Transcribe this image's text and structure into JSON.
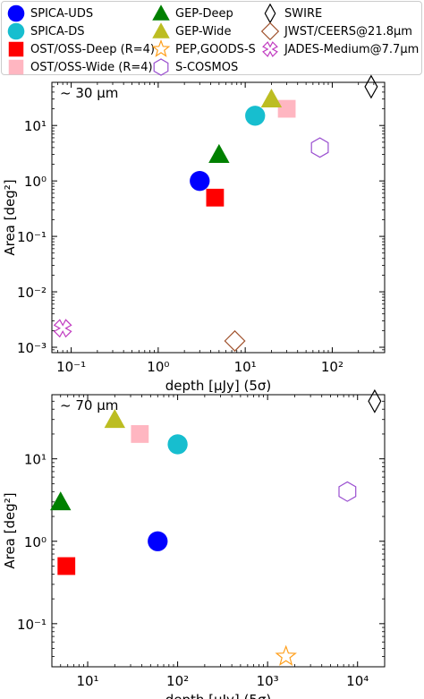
{
  "legend": [
    {
      "label": "SPICA-UDS",
      "marker": "circle",
      "color": "#0000ff",
      "filled": true
    },
    {
      "label": "SPICA-DS",
      "marker": "circle",
      "color": "#17becf",
      "filled": true
    },
    {
      "label": "OST/OSS-Deep (R=4)",
      "marker": "square",
      "color": "#ff0000",
      "filled": true
    },
    {
      "label": "OST/OSS-Wide (R=4)",
      "marker": "square",
      "color": "#ffb6c1",
      "filled": true
    },
    {
      "label": "GEP-Deep",
      "marker": "triangle",
      "color": "#008000",
      "filled": true
    },
    {
      "label": "GEP-Wide",
      "marker": "triangle",
      "color": "#bcbd22",
      "filled": true
    },
    {
      "label": "PEP,GOODS-S",
      "marker": "star",
      "color": "#ff9f1c",
      "filled": false
    },
    {
      "label": "S-COSMOS",
      "marker": "hexagon",
      "color": "#9a4fd0",
      "filled": false
    },
    {
      "label": "SWIRE",
      "marker": "thin_diamond",
      "color": "#000000",
      "filled": false
    },
    {
      "label": "JWST/CEERS@21.8μm",
      "marker": "diamond",
      "color": "#a0522d",
      "filled": false
    },
    {
      "label": "JADES-Medium@7.7μm",
      "marker": "x",
      "color": "#c13cc1",
      "filled": false
    }
  ],
  "chart_data": [
    {
      "type": "scatter",
      "annotation": "~ 30 μm",
      "xlabel": "depth [μJy] (5σ)",
      "ylabel": "Area [deg²]",
      "xscale": "log",
      "yscale": "log",
      "xlim": [
        0.06,
        400
      ],
      "ylim": [
        0.0008,
        60
      ],
      "xticks": [
        0.1,
        1,
        10,
        100
      ],
      "xticklabels": [
        "10⁻¹",
        "10⁰",
        "10¹",
        "10²"
      ],
      "yticks": [
        0.001,
        0.01,
        0.1,
        1,
        10
      ],
      "yticklabels": [
        "10⁻³",
        "10⁻²",
        "10⁻¹",
        "10⁰",
        "10¹"
      ],
      "series": [
        {
          "name": "SPICA-UDS",
          "x": [
            3
          ],
          "y": [
            1
          ]
        },
        {
          "name": "SPICA-DS",
          "x": [
            13
          ],
          "y": [
            15
          ]
        },
        {
          "name": "OST/OSS-Deep (R=4)",
          "x": [
            4.5
          ],
          "y": [
            0.5
          ]
        },
        {
          "name": "OST/OSS-Wide (R=4)",
          "x": [
            30
          ],
          "y": [
            20
          ]
        },
        {
          "name": "GEP-Deep",
          "x": [
            5
          ],
          "y": [
            3
          ]
        },
        {
          "name": "GEP-Wide",
          "x": [
            20
          ],
          "y": [
            30
          ]
        },
        {
          "name": "S-COSMOS",
          "x": [
            72
          ],
          "y": [
            4
          ]
        },
        {
          "name": "SWIRE",
          "x": [
            280
          ],
          "y": [
            50
          ]
        },
        {
          "name": "JWST/CEERS@21.8μm",
          "x": [
            7.6
          ],
          "y": [
            0.0013
          ]
        },
        {
          "name": "JADES-Medium@7.7μm",
          "x": [
            0.08
          ],
          "y": [
            0.0022
          ]
        }
      ]
    },
    {
      "type": "scatter",
      "annotation": "~ 70 μm",
      "xlabel": "depth [μJy] (5σ)",
      "ylabel": "Area [deg²]",
      "xscale": "log",
      "yscale": "log",
      "xlim": [
        4,
        20000
      ],
      "ylim": [
        0.03,
        60
      ],
      "xticks": [
        10,
        100,
        1000,
        10000
      ],
      "xticklabels": [
        "10¹",
        "10²",
        "10³",
        "10⁴"
      ],
      "yticks": [
        0.1,
        1,
        10
      ],
      "yticklabels": [
        "10⁻¹",
        "10⁰",
        "10¹"
      ],
      "series": [
        {
          "name": "SPICA-UDS",
          "x": [
            60
          ],
          "y": [
            1
          ]
        },
        {
          "name": "SPICA-DS",
          "x": [
            100
          ],
          "y": [
            15
          ]
        },
        {
          "name": "OST/OSS-Deep (R=4)",
          "x": [
            5.8
          ],
          "y": [
            0.5
          ]
        },
        {
          "name": "OST/OSS-Wide (R=4)",
          "x": [
            38
          ],
          "y": [
            20
          ]
        },
        {
          "name": "GEP-Deep",
          "x": [
            5
          ],
          "y": [
            3
          ]
        },
        {
          "name": "GEP-Wide",
          "x": [
            20
          ],
          "y": [
            30
          ]
        },
        {
          "name": "PEP,GOODS-S",
          "x": [
            1600
          ],
          "y": [
            0.04
          ]
        },
        {
          "name": "S-COSMOS",
          "x": [
            7700
          ],
          "y": [
            4
          ]
        },
        {
          "name": "SWIRE",
          "x": [
            15500
          ],
          "y": [
            50
          ]
        }
      ]
    }
  ]
}
